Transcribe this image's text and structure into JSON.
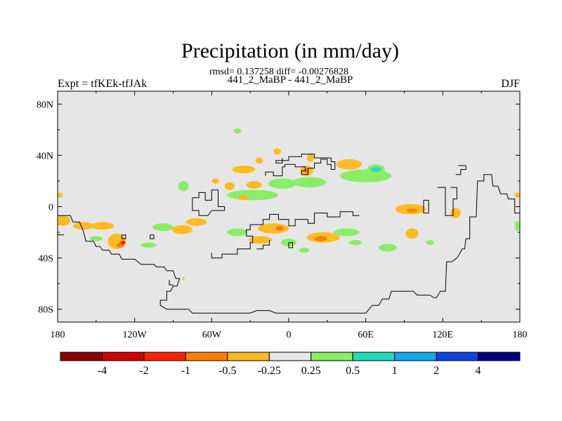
{
  "chart_data": {
    "type": "heatmap",
    "title": "Precipitation (in mm/day)",
    "stats": "rmsd= 0.137258 diff= -0.00276828",
    "subtitle": "441_2_MaBP - 441_2_MaBP",
    "left_label": "Expt = tfKEk-tfJAk",
    "right_label": "DJF",
    "x_axis": {
      "range": [
        -180,
        180
      ],
      "ticks": [
        -180,
        -120,
        -60,
        0,
        60,
        120,
        180
      ],
      "tick_labels": [
        "180",
        "120W",
        "60W",
        "0",
        "60E",
        "120E",
        "180"
      ]
    },
    "y_axis": {
      "range": [
        -90,
        90
      ],
      "ticks": [
        80,
        40,
        0,
        -40,
        -80
      ],
      "tick_labels": [
        "80N",
        "40N",
        "0",
        "40S",
        "80S"
      ]
    },
    "background_color": "#e6e6e6",
    "colorbar": {
      "labels": [
        "-4",
        "-2",
        "-1",
        "-0.5",
        "-0.25",
        "0.25",
        "0.5",
        "1",
        "2",
        "4"
      ],
      "colors": [
        "#8b0000",
        "#cc0000",
        "#ff2200",
        "#ff7f00",
        "#ffbb22",
        "#e6e6e6",
        "#88ee66",
        "#22ddbb",
        "#11aaee",
        "#1144dd",
        "#000080"
      ]
    },
    "anomalies": [
      {
        "lon": -176,
        "lat": -11,
        "rlon": 6,
        "rlat": 4,
        "level": -0.5
      },
      {
        "lon": -160,
        "lat": -15,
        "rlon": 8,
        "rlat": 3,
        "level": -0.5
      },
      {
        "lon": -145,
        "lat": -15,
        "rlon": 9,
        "rlat": 3,
        "level": -0.5
      },
      {
        "lon": -134,
        "lat": -27,
        "rlon": 7,
        "rlat": 6,
        "level": -0.5
      },
      {
        "lon": -131,
        "lat": -30,
        "rlon": 3,
        "rlat": 2,
        "level": -1
      },
      {
        "lon": -129,
        "lat": -28,
        "rlon": 2,
        "rlat": 1.5,
        "level": -2
      },
      {
        "lon": -150,
        "lat": -25,
        "rlon": 5,
        "rlat": 2,
        "level": 0.25
      },
      {
        "lon": -109,
        "lat": -30,
        "rlon": 6,
        "rlat": 2,
        "level": 0.25
      },
      {
        "lon": -178,
        "lat": 9,
        "rlon": 2,
        "rlat": 2,
        "level": -0.5
      },
      {
        "lon": 178,
        "lat": 9,
        "rlon": 2,
        "rlat": 2,
        "level": -0.5
      },
      {
        "lon": -98,
        "lat": -16,
        "rlon": 8,
        "rlat": 3,
        "level": 0.25
      },
      {
        "lon": -83,
        "lat": -18,
        "rlon": 8,
        "rlat": 3.5,
        "level": -0.5
      },
      {
        "lon": -72,
        "lat": -12,
        "rlon": 8,
        "rlat": 3,
        "level": -0.5
      },
      {
        "lon": -82,
        "lat": 16,
        "rlon": 4,
        "rlat": 4,
        "level": 0.25
      },
      {
        "lon": -57,
        "lat": 20,
        "rlon": 3,
        "rlat": 2,
        "level": -0.5
      },
      {
        "lon": -35,
        "lat": 29,
        "rlon": 9,
        "rlat": 3,
        "level": -0.5
      },
      {
        "lon": -23,
        "lat": 36,
        "rlon": 3,
        "rlat": 2.5,
        "level": -0.5
      },
      {
        "lon": -9,
        "lat": 43,
        "rlon": 3,
        "rlat": 2.5,
        "level": -0.5
      },
      {
        "lon": 14,
        "lat": 28,
        "rlon": 5,
        "rlat": 4,
        "level": -0.5
      },
      {
        "lon": 14,
        "lat": 28,
        "rlon": 2,
        "rlat": 2,
        "level": -1
      },
      {
        "lon": 17,
        "lat": 38,
        "rlon": 3,
        "rlat": 3,
        "level": -0.5
      },
      {
        "lon": 47,
        "lat": 33,
        "rlon": 10,
        "rlat": 4,
        "level": -0.5
      },
      {
        "lon": -46,
        "lat": 16,
        "rlon": 4,
        "rlat": 3,
        "level": -0.5
      },
      {
        "lon": -27,
        "lat": 17,
        "rlon": 6,
        "rlat": 3,
        "level": -0.5
      },
      {
        "lon": -5,
        "lat": 18,
        "rlon": 11,
        "rlat": 4,
        "level": 0.25
      },
      {
        "lon": 16,
        "lat": 19,
        "rlon": 13,
        "rlat": 4,
        "level": 0.25
      },
      {
        "lon": -28,
        "lat": 9,
        "rlon": 20,
        "rlat": 4,
        "level": 0.25
      },
      {
        "lon": 60,
        "lat": 24,
        "rlon": 20,
        "rlat": 5,
        "level": 0.25
      },
      {
        "lon": 68,
        "lat": 29,
        "rlon": 7,
        "rlat": 4,
        "level": 0.25
      },
      {
        "lon": 68,
        "lat": 29,
        "rlon": 4,
        "rlat": 2,
        "level": 0.5
      },
      {
        "lon": -35,
        "lat": 7,
        "rlon": 4,
        "rlat": 2,
        "level": -0.5
      },
      {
        "lon": -40,
        "lat": -20,
        "rlon": 8,
        "rlat": 3,
        "level": 0.25
      },
      {
        "lon": -12,
        "lat": -17,
        "rlon": 12,
        "rlat": 4,
        "level": -0.5
      },
      {
        "lon": -7,
        "lat": -17,
        "rlon": 3,
        "rlat": 2,
        "level": -1
      },
      {
        "lon": -22,
        "lat": -26,
        "rlon": 9,
        "rlat": 3,
        "level": -0.5
      },
      {
        "lon": 0,
        "lat": -28,
        "rlon": 6,
        "rlat": 3,
        "level": 0.25
      },
      {
        "lon": 12,
        "lat": -34,
        "rlon": 4,
        "rlat": 2,
        "level": 0.25
      },
      {
        "lon": 27,
        "lat": -24,
        "rlon": 13,
        "rlat": 4,
        "level": -0.5
      },
      {
        "lon": 25,
        "lat": -25,
        "rlon": 5,
        "rlat": 2,
        "level": -1
      },
      {
        "lon": 45,
        "lat": -20,
        "rlon": 10,
        "rlat": 3,
        "level": 0.25
      },
      {
        "lon": 52,
        "lat": -28,
        "rlon": 5,
        "rlat": 2,
        "level": 0.25
      },
      {
        "lon": 77,
        "lat": -32,
        "rlon": 7,
        "rlat": 3,
        "level": 0.25
      },
      {
        "lon": 95,
        "lat": -2,
        "rlon": 12,
        "rlat": 4,
        "level": -0.5
      },
      {
        "lon": 96,
        "lat": -3,
        "rlon": 4,
        "rlat": 1.5,
        "level": -1
      },
      {
        "lon": 96,
        "lat": -21,
        "rlon": 5,
        "rlat": 4,
        "level": -0.5
      },
      {
        "lon": 110,
        "lat": -28,
        "rlon": 3,
        "rlat": 2,
        "level": 0.25
      },
      {
        "lon": 130,
        "lat": -5,
        "rlon": 4,
        "rlat": 4,
        "level": -0.5
      },
      {
        "lon": -40,
        "lat": 59,
        "rlon": 3,
        "rlat": 2,
        "level": 0.25
      },
      {
        "lon": 178,
        "lat": -15,
        "rlon": 2,
        "rlat": 4,
        "level": 0.25
      },
      {
        "lon": -82,
        "lat": -56,
        "rlon": 1,
        "rlat": 1,
        "level": -0.5
      }
    ],
    "coastlines": [
      [
        [
          -180,
          -7
        ],
        [
          -170,
          -7
        ],
        [
          -168,
          -12
        ],
        [
          -163,
          -12
        ],
        [
          -160,
          -19
        ],
        [
          -158,
          -27
        ],
        [
          -152,
          -27
        ],
        [
          -150,
          -31
        ],
        [
          -147,
          -31
        ],
        [
          -145,
          -34
        ],
        [
          -140,
          -34
        ],
        [
          -138,
          -37
        ],
        [
          -132,
          -37
        ],
        [
          -130,
          -41
        ],
        [
          -120,
          -41
        ],
        [
          -115,
          -45
        ],
        [
          -105,
          -45
        ],
        [
          -103,
          -47
        ],
        [
          -97,
          -47
        ],
        [
          -95,
          -50
        ],
        [
          -90,
          -50
        ],
        [
          -88,
          -56
        ],
        [
          -85,
          -56
        ],
        [
          -87,
          -62
        ],
        [
          -90,
          -62
        ],
        [
          -92,
          -66
        ],
        [
          -95,
          -66
        ],
        [
          -95,
          -73
        ],
        [
          -100,
          -73
        ],
        [
          -100,
          -77
        ],
        [
          -95,
          -80
        ],
        [
          -78,
          -80
        ],
        [
          -75,
          -83
        ],
        [
          -30,
          -83
        ],
        [
          -25,
          -81
        ],
        [
          -15,
          -81
        ],
        [
          -10,
          -83
        ],
        [
          60,
          -83
        ],
        [
          65,
          -77
        ],
        [
          70,
          -77
        ],
        [
          73,
          -72
        ],
        [
          78,
          -72
        ],
        [
          80,
          -66
        ],
        [
          97,
          -66
        ],
        [
          100,
          -69
        ],
        [
          110,
          -69
        ],
        [
          113,
          -71
        ],
        [
          115,
          -71
        ],
        [
          118,
          -66
        ],
        [
          122,
          -66
        ],
        [
          123,
          -43
        ],
        [
          127,
          -43
        ],
        [
          131,
          -40
        ],
        [
          133,
          -37
        ],
        [
          135,
          -33
        ],
        [
          137,
          -33
        ],
        [
          138,
          -25
        ],
        [
          141,
          -25
        ],
        [
          141,
          -8
        ],
        [
          146,
          -8
        ],
        [
          147,
          20
        ],
        [
          152,
          20
        ],
        [
          152,
          25
        ],
        [
          158,
          25
        ],
        [
          159,
          16
        ],
        [
          163,
          16
        ],
        [
          165,
          10
        ],
        [
          170,
          10
        ],
        [
          171,
          6
        ],
        [
          176,
          6
        ],
        [
          176,
          -5
        ],
        [
          180,
          -5
        ]
      ],
      [
        [
          -180,
          -22
        ],
        [
          -175,
          -22
        ]
      ],
      [
        [
          -108,
          -22
        ],
        [
          -108,
          -25
        ],
        [
          -105,
          -25
        ],
        [
          -105,
          -22
        ],
        [
          -108,
          -22
        ]
      ],
      [
        [
          -93,
          -57
        ],
        [
          -93,
          -61
        ],
        [
          -90,
          -61
        ]
      ],
      [
        [
          -130,
          -22
        ],
        [
          -127,
          -22
        ],
        [
          -127,
          -25
        ],
        [
          -130,
          -25
        ],
        [
          -130,
          -22
        ]
      ],
      [
        [
          -60,
          -36
        ],
        [
          -60,
          -40
        ],
        [
          -52,
          -40
        ],
        [
          -52,
          -37
        ],
        [
          -40,
          -37
        ],
        [
          -40,
          -33
        ],
        [
          -36,
          -33
        ],
        [
          -30,
          -33
        ],
        [
          -30,
          -28
        ],
        [
          -28,
          -28
        ],
        [
          -28,
          -23
        ],
        [
          -33,
          -23
        ],
        [
          -33,
          -18
        ],
        [
          -30,
          -18
        ],
        [
          -30,
          -14
        ],
        [
          -25,
          -14
        ],
        [
          -20,
          -14
        ],
        [
          -20,
          -10
        ],
        [
          -15,
          -10
        ],
        [
          -15,
          -6
        ],
        [
          -8,
          -6
        ],
        [
          -8,
          -10
        ],
        [
          0,
          -10
        ],
        [
          0,
          -15
        ],
        [
          5,
          -15
        ],
        [
          5,
          -10
        ],
        [
          15,
          -10
        ],
        [
          15,
          -13
        ],
        [
          20,
          -13
        ],
        [
          20,
          -5
        ],
        [
          30,
          -5
        ],
        [
          30,
          -8
        ],
        [
          40,
          -8
        ],
        [
          40,
          -4
        ],
        [
          50,
          -4
        ],
        [
          50,
          -7
        ],
        [
          55,
          -7
        ]
      ],
      [
        [
          -15,
          -26
        ],
        [
          -15,
          -30
        ],
        [
          -20,
          -30
        ],
        [
          -20,
          -33
        ],
        [
          -25,
          -33
        ]
      ],
      [
        [
          0,
          -28
        ],
        [
          3,
          -28
        ],
        [
          3,
          -32
        ],
        [
          0,
          -32
        ],
        [
          0,
          -28
        ]
      ],
      [
        [
          -75,
          7
        ],
        [
          -70,
          7
        ],
        [
          -70,
          11
        ],
        [
          -65,
          11
        ],
        [
          -65,
          5
        ],
        [
          -60,
          5
        ],
        [
          -60,
          13
        ],
        [
          -55,
          13
        ],
        [
          -55,
          0
        ],
        [
          -50,
          0
        ],
        [
          -50,
          -3
        ],
        [
          -60,
          -3
        ],
        [
          -63,
          -7
        ],
        [
          -70,
          -7
        ],
        [
          -70,
          -3
        ],
        [
          -75,
          -3
        ],
        [
          -75,
          7
        ]
      ],
      [
        [
          -5,
          24
        ],
        [
          -5,
          31
        ],
        [
          -3,
          31
        ],
        [
          -3,
          33
        ],
        [
          5,
          33
        ],
        [
          5,
          31
        ],
        [
          13,
          31
        ],
        [
          13,
          28
        ],
        [
          10,
          28
        ],
        [
          10,
          25
        ],
        [
          15,
          25
        ],
        [
          15,
          30
        ],
        [
          20,
          30
        ],
        [
          20,
          34
        ],
        [
          25,
          34
        ],
        [
          25,
          37
        ],
        [
          30,
          37
        ],
        [
          30,
          33
        ],
        [
          33,
          33
        ],
        [
          33,
          29
        ],
        [
          36,
          29
        ],
        [
          36,
          35
        ],
        [
          33,
          35
        ],
        [
          33,
          38
        ],
        [
          20,
          38
        ],
        [
          20,
          41
        ],
        [
          10,
          41
        ],
        [
          10,
          39
        ],
        [
          0,
          39
        ],
        [
          0,
          36
        ],
        [
          -10,
          36
        ],
        [
          -10,
          34
        ],
        [
          -5,
          34
        ],
        [
          -5,
          38
        ]
      ],
      [
        [
          -5,
          24
        ],
        [
          -12,
          24
        ],
        [
          -12,
          27
        ],
        [
          -18,
          27
        ],
        [
          -18,
          24
        ]
      ],
      [
        [
          116,
          15
        ],
        [
          122,
          15
        ],
        [
          122,
          -7
        ],
        [
          128,
          -7
        ],
        [
          128,
          6
        ],
        [
          131,
          6
        ],
        [
          131,
          15
        ],
        [
          126,
          15
        ]
      ],
      [
        [
          132,
          32
        ],
        [
          138,
          32
        ],
        [
          138,
          29
        ],
        [
          134,
          29
        ],
        [
          134,
          25
        ],
        [
          130,
          25
        ]
      ],
      [
        [
          105,
          5
        ],
        [
          109,
          5
        ],
        [
          109,
          -5
        ],
        [
          105,
          -5
        ],
        [
          105,
          5
        ]
      ]
    ]
  }
}
